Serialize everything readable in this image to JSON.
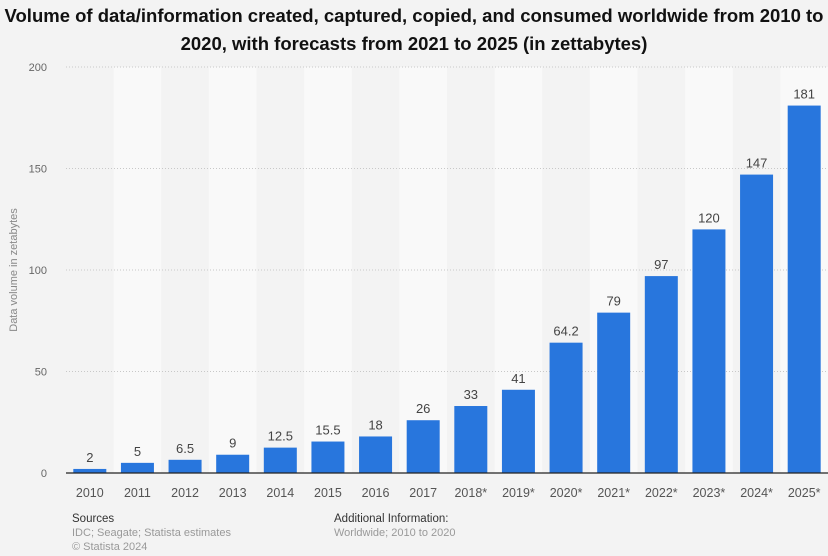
{
  "chart_data": {
    "type": "bar",
    "title": "Volume of data/information created, captured, copied, and consumed worldwide from 2010 to 2020, with forecasts from 2021 to 2025 (in zettabytes)",
    "xlabel": "",
    "ylabel": "Data volume in zetabytes",
    "ylim": [
      0,
      200
    ],
    "yticks": [
      0,
      50,
      100,
      150,
      200
    ],
    "grid": true,
    "categories": [
      "2010",
      "2011",
      "2012",
      "2013",
      "2014",
      "2015",
      "2016",
      "2017",
      "2018*",
      "2019*",
      "2020*",
      "2021*",
      "2022*",
      "2023*",
      "2024*",
      "2025*"
    ],
    "values": [
      2,
      5,
      6.5,
      9,
      12.5,
      15.5,
      18,
      26,
      33,
      41,
      64.2,
      79,
      97,
      120,
      147,
      181
    ],
    "data_labels": [
      "2",
      "5",
      "6.5",
      "9",
      "12.5",
      "15.5",
      "18",
      "26",
      "33",
      "41",
      "64.2",
      "79",
      "97",
      "120",
      "147",
      "181"
    ],
    "colors": {
      "bar": "#2876dd",
      "background": "#f3f3f3",
      "band": "#f9f9f9"
    }
  },
  "footer": {
    "sources_heading": "Sources",
    "sources_text": "IDC; Seagate; Statista estimates",
    "copyright": "© Statista 2024",
    "additional_heading": "Additional Information:",
    "additional_text": "Worldwide; 2010 to 2020"
  }
}
